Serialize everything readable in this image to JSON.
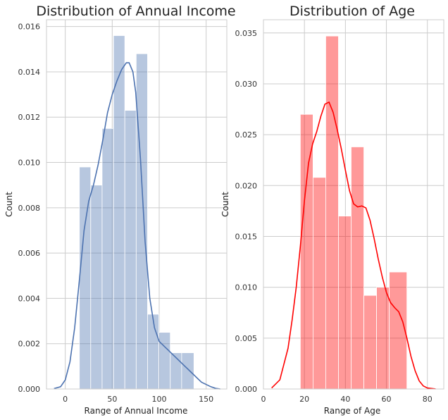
{
  "chart_data": [
    {
      "type": "histogram+kde",
      "title": "Distribution of Annual Income",
      "xlabel": "Range of Annual Income",
      "ylabel": "Count",
      "xlim": [
        -20,
        172
      ],
      "ylim": [
        0,
        0.0163
      ],
      "xticks": [
        0,
        50,
        100,
        150
      ],
      "yticks": [
        0.0,
        0.002,
        0.004,
        0.006,
        0.008,
        0.01,
        0.012,
        0.014,
        0.016
      ],
      "ytick_decimals": 3,
      "grid": true,
      "bar_color": "#4c72b0",
      "bar_opacity": 0.4,
      "line_color": "#4c72b0",
      "bins": [
        {
          "x0": 15,
          "x1": 27.1,
          "value": 0.0098
        },
        {
          "x0": 27.1,
          "x1": 39.2,
          "value": 0.009
        },
        {
          "x0": 39.2,
          "x1": 51.3,
          "value": 0.0115
        },
        {
          "x0": 51.3,
          "x1": 63.4,
          "value": 0.0156
        },
        {
          "x0": 63.4,
          "x1": 75.5,
          "value": 0.0123
        },
        {
          "x0": 75.5,
          "x1": 87.6,
          "value": 0.0148
        },
        {
          "x0": 87.6,
          "x1": 99.7,
          "value": 0.0033
        },
        {
          "x0": 99.7,
          "x1": 111.8,
          "value": 0.0025
        },
        {
          "x0": 111.8,
          "x1": 123.9,
          "value": 0.0016
        },
        {
          "x0": 123.9,
          "x1": 137,
          "value": 0.0016
        }
      ],
      "kde": {
        "x": [
          -12,
          -5,
          0,
          5,
          10,
          15,
          20,
          25,
          30,
          35,
          40,
          45,
          50,
          55,
          60,
          65,
          68,
          72,
          75,
          80,
          85,
          90,
          95,
          100,
          105,
          110,
          115,
          120,
          125,
          130,
          135,
          140,
          145,
          150,
          155,
          160,
          165
        ],
        "y": [
          2e-05,
          0.0001,
          0.0004,
          0.0012,
          0.0027,
          0.0048,
          0.007,
          0.0083,
          0.009,
          0.0099,
          0.011,
          0.0122,
          0.013,
          0.0136,
          0.0141,
          0.0144,
          0.0144,
          0.014,
          0.0131,
          0.0102,
          0.0065,
          0.004,
          0.0027,
          0.0021,
          0.0019,
          0.0017,
          0.0015,
          0.0013,
          0.0011,
          0.0009,
          0.0007,
          0.0005,
          0.0003,
          0.0002,
          0.0001,
          3e-05,
          0.0
        ]
      }
    },
    {
      "type": "histogram+kde",
      "title": "Distribution of Age",
      "xlabel": "Range of Age",
      "ylabel": "Count",
      "xlim": [
        0,
        88
      ],
      "ylim": [
        0,
        0.0363
      ],
      "xticks": [
        0,
        20,
        40,
        60,
        80
      ],
      "yticks": [
        0.0,
        0.005,
        0.01,
        0.015,
        0.02,
        0.025,
        0.03,
        0.035
      ],
      "ytick_decimals": 3,
      "grid": true,
      "bar_color": "#ff0000",
      "bar_opacity": 0.4,
      "line_color": "#ff0000",
      "bins": [
        {
          "x0": 18,
          "x1": 24.2,
          "value": 0.027
        },
        {
          "x0": 24.2,
          "x1": 30.4,
          "value": 0.0208
        },
        {
          "x0": 30.4,
          "x1": 36.6,
          "value": 0.0347
        },
        {
          "x0": 36.6,
          "x1": 42.8,
          "value": 0.017
        },
        {
          "x0": 42.8,
          "x1": 49.0,
          "value": 0.0238
        },
        {
          "x0": 49.0,
          "x1": 55.2,
          "value": 0.0092
        },
        {
          "x0": 55.2,
          "x1": 61.4,
          "value": 0.01
        },
        {
          "x0": 61.4,
          "x1": 70,
          "value": 0.0115
        }
      ],
      "kde": {
        "x": [
          4,
          8,
          12,
          14,
          16,
          18,
          20,
          22,
          24,
          26,
          28,
          30,
          32,
          34,
          36,
          38,
          40,
          42,
          44,
          46,
          48,
          50,
          52,
          54,
          56,
          58,
          60,
          62,
          64,
          66,
          68,
          70,
          72,
          74,
          76,
          78,
          80,
          84
        ],
        "y": [
          0.0001,
          0.0009,
          0.004,
          0.0068,
          0.01,
          0.014,
          0.0185,
          0.0222,
          0.0241,
          0.0253,
          0.0268,
          0.028,
          0.0282,
          0.0272,
          0.0255,
          0.0236,
          0.0215,
          0.0195,
          0.0182,
          0.0179,
          0.018,
          0.0178,
          0.0166,
          0.0148,
          0.0128,
          0.011,
          0.0095,
          0.0085,
          0.008,
          0.0076,
          0.0066,
          0.005,
          0.0032,
          0.0018,
          0.0008,
          0.0003,
          0.0001,
          1e-05
        ]
      }
    }
  ]
}
